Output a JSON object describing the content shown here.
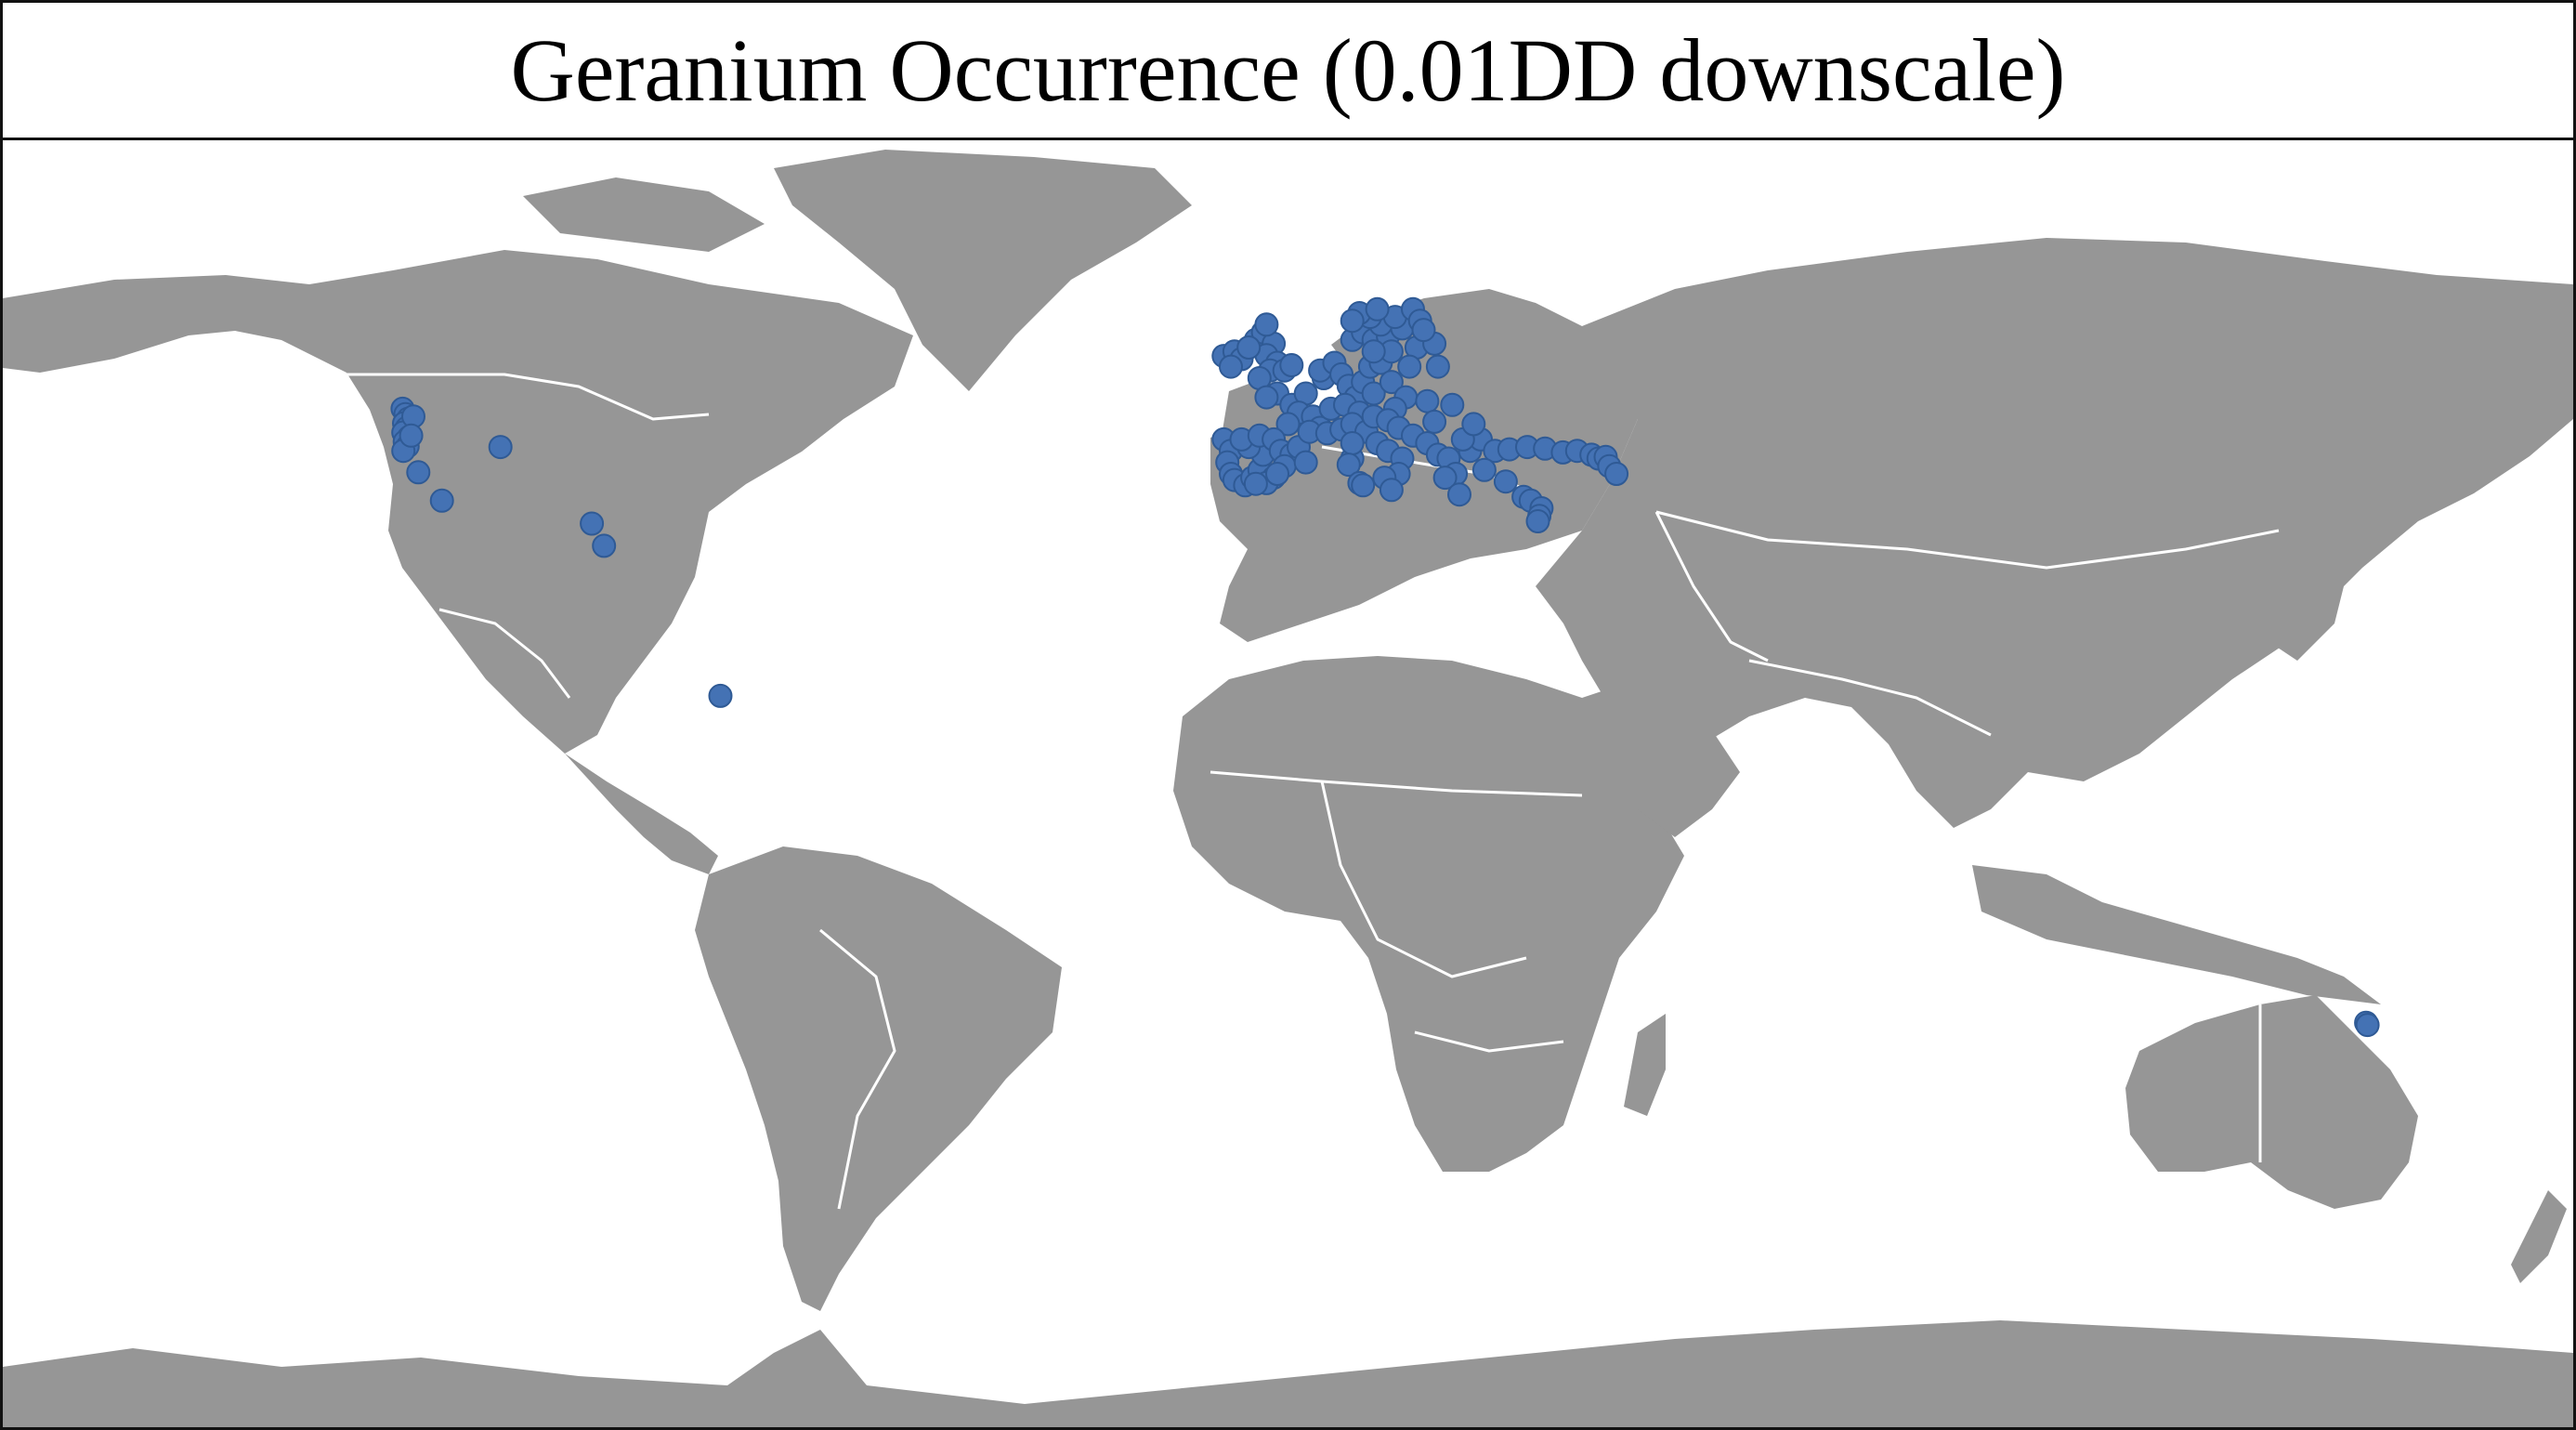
{
  "title": "Geranium Occurrence (0.01DD downscale)",
  "colors": {
    "land": "#969696",
    "ocean": "#ffffff",
    "border": "#ffffff",
    "point_fill": "#4472b4",
    "point_stroke": "#2f5a95",
    "frame": "#111111"
  },
  "projection": "plate-carree",
  "occurrences": [
    {
      "lon": -124.0,
      "lat": 46.5
    },
    {
      "lon": -123.6,
      "lat": 45.8
    },
    {
      "lon": -123.2,
      "lat": 45.2
    },
    {
      "lon": -123.8,
      "lat": 44.6
    },
    {
      "lon": -123.4,
      "lat": 44.0
    },
    {
      "lon": -123.9,
      "lat": 43.4
    },
    {
      "lon": -123.1,
      "lat": 42.8
    },
    {
      "lon": -123.7,
      "lat": 42.2
    },
    {
      "lon": -123.3,
      "lat": 41.6
    },
    {
      "lon": -123.9,
      "lat": 41.0
    },
    {
      "lon": -122.5,
      "lat": 45.5
    },
    {
      "lon": -122.8,
      "lat": 43.0
    },
    {
      "lon": -121.8,
      "lat": 38.2
    },
    {
      "lon": -118.5,
      "lat": 34.5
    },
    {
      "lon": -110.3,
      "lat": 41.5
    },
    {
      "lon": -97.5,
      "lat": 31.5
    },
    {
      "lon": -95.8,
      "lat": 28.6
    },
    {
      "lon": -79.5,
      "lat": 9.0
    },
    {
      "lon": -9.0,
      "lat": 53.4
    },
    {
      "lon": -7.5,
      "lat": 54.0
    },
    {
      "lon": -6.5,
      "lat": 53.0
    },
    {
      "lon": -8.0,
      "lat": 52.0
    },
    {
      "lon": -4.5,
      "lat": 55.5
    },
    {
      "lon": -3.5,
      "lat": 56.5
    },
    {
      "lon": -2.0,
      "lat": 55.0
    },
    {
      "lon": -3.0,
      "lat": 53.5
    },
    {
      "lon": -1.5,
      "lat": 52.5
    },
    {
      "lon": -2.5,
      "lat": 51.5
    },
    {
      "lon": -0.5,
      "lat": 51.5
    },
    {
      "lon": 0.5,
      "lat": 52.2
    },
    {
      "lon": -4.0,
      "lat": 50.5
    },
    {
      "lon": -3.0,
      "lat": 57.5
    },
    {
      "lon": -5.5,
      "lat": 54.5
    },
    {
      "lon": -1.5,
      "lat": 48.5
    },
    {
      "lon": -3.0,
      "lat": 48.0
    },
    {
      "lon": 0.5,
      "lat": 47.0
    },
    {
      "lon": 2.5,
      "lat": 48.5
    },
    {
      "lon": 1.5,
      "lat": 46.0
    },
    {
      "lon": 3.5,
      "lat": 45.5
    },
    {
      "lon": 0.0,
      "lat": 44.5
    },
    {
      "lon": 4.5,
      "lat": 44.0
    },
    {
      "lon": 6.0,
      "lat": 46.5
    },
    {
      "lon": 5.0,
      "lat": 50.5
    },
    {
      "lon": 4.5,
      "lat": 51.5
    },
    {
      "lon": 6.5,
      "lat": 52.5
    },
    {
      "lon": 7.5,
      "lat": 51.0
    },
    {
      "lon": 8.5,
      "lat": 49.5
    },
    {
      "lon": 9.5,
      "lat": 48.0
    },
    {
      "lon": 10.5,
      "lat": 50.0
    },
    {
      "lon": 11.5,
      "lat": 52.0
    },
    {
      "lon": 13.0,
      "lat": 52.5
    },
    {
      "lon": 12.0,
      "lat": 48.5
    },
    {
      "lon": 14.5,
      "lat": 50.0
    },
    {
      "lon": 16.5,
      "lat": 48.0
    },
    {
      "lon": 15.0,
      "lat": 46.5
    },
    {
      "lon": 8.0,
      "lat": 47.0
    },
    {
      "lon": 10.0,
      "lat": 46.0
    },
    {
      "lon": 9.0,
      "lat": 55.5
    },
    {
      "lon": 10.5,
      "lat": 56.5
    },
    {
      "lon": 12.0,
      "lat": 55.5
    },
    {
      "lon": 14.0,
      "lat": 56.0
    },
    {
      "lon": 13.0,
      "lat": 57.5
    },
    {
      "lon": 16.0,
      "lat": 57.0
    },
    {
      "lon": 11.5,
      "lat": 58.5
    },
    {
      "lon": 15.0,
      "lat": 58.5
    },
    {
      "lon": 17.5,
      "lat": 59.5
    },
    {
      "lon": 18.5,
      "lat": 58.0
    },
    {
      "lon": 10.0,
      "lat": 59.0
    },
    {
      "lon": 9.0,
      "lat": 58.0
    },
    {
      "lon": 12.5,
      "lat": 59.5
    },
    {
      "lon": 14.5,
      "lat": 54.0
    },
    {
      "lon": 18.0,
      "lat": 54.5
    },
    {
      "lon": 20.5,
      "lat": 55.0
    },
    {
      "lon": 19.0,
      "lat": 56.8
    },
    {
      "lon": 21.0,
      "lat": 52.0
    },
    {
      "lon": 17.0,
      "lat": 52.0
    },
    {
      "lon": 12.0,
      "lat": 54.0
    },
    {
      "lon": 19.5,
      "lat": 47.5
    },
    {
      "lon": 23.0,
      "lat": 47.0
    },
    {
      "lon": -9.0,
      "lat": 42.5
    },
    {
      "lon": -8.0,
      "lat": 41.0
    },
    {
      "lon": -8.5,
      "lat": 39.5
    },
    {
      "lon": -8.0,
      "lat": 38.0
    },
    {
      "lon": -7.5,
      "lat": 37.2
    },
    {
      "lon": -6.0,
      "lat": 36.5
    },
    {
      "lon": -5.0,
      "lat": 37.5
    },
    {
      "lon": -4.0,
      "lat": 38.5
    },
    {
      "lon": -3.5,
      "lat": 40.5
    },
    {
      "lon": -5.5,
      "lat": 41.5
    },
    {
      "lon": -6.5,
      "lat": 42.5
    },
    {
      "lon": -4.0,
      "lat": 43.0
    },
    {
      "lon": -2.0,
      "lat": 42.5
    },
    {
      "lon": -1.0,
      "lat": 41.0
    },
    {
      "lon": 0.5,
      "lat": 40.5
    },
    {
      "lon": -0.5,
      "lat": 39.0
    },
    {
      "lon": -2.0,
      "lat": 37.5
    },
    {
      "lon": -3.0,
      "lat": 36.8
    },
    {
      "lon": 1.5,
      "lat": 41.5
    },
    {
      "lon": 2.5,
      "lat": 39.5
    },
    {
      "lon": -1.5,
      "lat": 38.0
    },
    {
      "lon": -4.5,
      "lat": 36.7
    },
    {
      "lon": 3.0,
      "lat": 43.5
    },
    {
      "lon": 5.5,
      "lat": 43.3
    },
    {
      "lon": 7.5,
      "lat": 43.8
    },
    {
      "lon": 9.0,
      "lat": 44.5
    },
    {
      "lon": 11.0,
      "lat": 43.5
    },
    {
      "lon": 12.5,
      "lat": 42.0
    },
    {
      "lon": 14.0,
      "lat": 41.0
    },
    {
      "lon": 16.0,
      "lat": 40.0
    },
    {
      "lon": 15.5,
      "lat": 38.0
    },
    {
      "lon": 13.5,
      "lat": 37.5
    },
    {
      "lon": 9.0,
      "lat": 40.0
    },
    {
      "lon": 9.0,
      "lat": 42.0
    },
    {
      "lon": 8.5,
      "lat": 39.2
    },
    {
      "lon": 10.0,
      "lat": 36.8
    },
    {
      "lon": 12.0,
      "lat": 45.5
    },
    {
      "lon": 14.0,
      "lat": 45.0
    },
    {
      "lon": 15.5,
      "lat": 44.0
    },
    {
      "lon": 17.5,
      "lat": 43.0
    },
    {
      "lon": 19.5,
      "lat": 42.0
    },
    {
      "lon": 21.0,
      "lat": 40.5
    },
    {
      "lon": 22.5,
      "lat": 40.0
    },
    {
      "lon": 23.5,
      "lat": 38.0
    },
    {
      "lon": 22.0,
      "lat": 37.5
    },
    {
      "lon": 24.0,
      "lat": 35.3
    },
    {
      "lon": 25.5,
      "lat": 41.0
    },
    {
      "lon": 27.0,
      "lat": 42.5
    },
    {
      "lon": 24.5,
      "lat": 42.5
    },
    {
      "lon": 26.0,
      "lat": 44.5
    },
    {
      "lon": 20.5,
      "lat": 44.8
    },
    {
      "lon": 14.5,
      "lat": 35.9
    },
    {
      "lon": 10.5,
      "lat": 36.5
    },
    {
      "lon": 29.0,
      "lat": 41.0
    },
    {
      "lon": 27.5,
      "lat": 38.5
    },
    {
      "lon": 30.5,
      "lat": 37.0
    },
    {
      "lon": 31.0,
      "lat": 41.2
    },
    {
      "lon": 33.5,
      "lat": 41.5
    },
    {
      "lon": 36.0,
      "lat": 41.3
    },
    {
      "lon": 38.5,
      "lat": 40.8
    },
    {
      "lon": 40.5,
      "lat": 41.0
    },
    {
      "lon": 42.5,
      "lat": 40.5
    },
    {
      "lon": 43.5,
      "lat": 40.0
    },
    {
      "lon": 44.5,
      "lat": 40.2
    },
    {
      "lon": 45.0,
      "lat": 39.0
    },
    {
      "lon": 46.0,
      "lat": 38.0
    },
    {
      "lon": 33.0,
      "lat": 35.0
    },
    {
      "lon": 34.0,
      "lat": 34.5
    },
    {
      "lon": 35.5,
      "lat": 33.5
    },
    {
      "lon": 35.2,
      "lat": 32.5
    },
    {
      "lon": 35.0,
      "lat": 31.8
    },
    {
      "lon": 151.0,
      "lat": -33.7
    },
    {
      "lon": 151.2,
      "lat": -34.0
    }
  ]
}
